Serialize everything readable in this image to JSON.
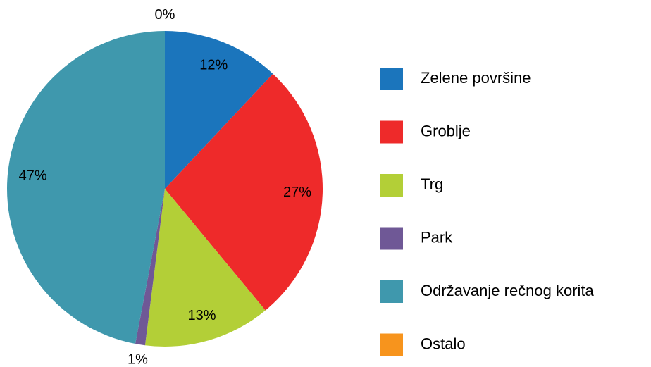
{
  "chart_data": {
    "type": "pie",
    "categories": [
      "Zelene površine",
      "Groblje",
      "Trg",
      "Park",
      "Održavanje rečnog korita",
      "Ostalo"
    ],
    "values": [
      12,
      27,
      13,
      1,
      47,
      0
    ],
    "value_labels": [
      "12%",
      "27%",
      "13%",
      "1%",
      "47%",
      "0%"
    ],
    "colors": [
      "#1b75bc",
      "#ee2a2a",
      "#b3cf37",
      "#6f5896",
      "#3f98ad",
      "#f7941d"
    ],
    "legend": "right"
  }
}
